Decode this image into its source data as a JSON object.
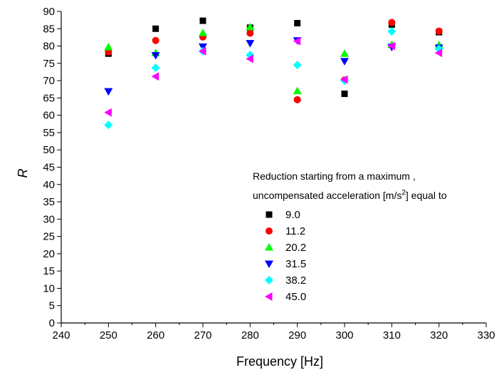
{
  "chart_data": {
    "type": "scatter",
    "xlabel": "Frequency [Hz]",
    "ylabel": "R",
    "xlim": [
      240,
      330
    ],
    "ylim": [
      0,
      90
    ],
    "x_ticks": [
      240,
      250,
      260,
      270,
      280,
      290,
      300,
      310,
      320,
      330
    ],
    "y_ticks": [
      0,
      5,
      10,
      15,
      20,
      25,
      30,
      35,
      40,
      45,
      50,
      55,
      60,
      65,
      70,
      75,
      80,
      85,
      90
    ],
    "grid": false,
    "legend": {
      "placement": "right-center",
      "title_line1": "Reduction starting from a maximum ,",
      "title_line2_prefix": "uncompensated acceleration [m/s",
      "title_line2_sup": "2",
      "title_line2_suffix": "] equal to"
    },
    "series": [
      {
        "name": "9.0",
        "marker": "square",
        "color": "#000000",
        "x": [
          250,
          260,
          270,
          280,
          290,
          300,
          310,
          320
        ],
        "y": [
          77.8,
          85.0,
          87.3,
          85.3,
          86.6,
          66.2,
          86.2,
          84.0
        ]
      },
      {
        "name": "11.2",
        "marker": "circle",
        "color": "#ff0000",
        "x": [
          250,
          260,
          270,
          280,
          290,
          300,
          310,
          320
        ],
        "y": [
          78.3,
          81.6,
          82.6,
          83.7,
          64.5,
          70.2,
          86.8,
          84.3
        ]
      },
      {
        "name": "20.2",
        "marker": "triangle-up",
        "color": "#00ff00",
        "x": [
          250,
          260,
          270,
          280,
          290,
          300,
          310,
          320
        ],
        "y": [
          79.7,
          78.0,
          83.8,
          85.5,
          67.0,
          77.8,
          80.4,
          80.3
        ]
      },
      {
        "name": "31.5",
        "marker": "triangle-down",
        "color": "#0000ff",
        "x": [
          250,
          260,
          270,
          280,
          290,
          300,
          310,
          320
        ],
        "y": [
          66.9,
          77.3,
          79.8,
          80.8,
          81.6,
          75.6,
          79.7,
          79.5
        ]
      },
      {
        "name": "38.2",
        "marker": "diamond",
        "color": "#00ffff",
        "x": [
          250,
          260,
          270,
          280,
          290,
          300,
          310,
          320
        ],
        "y": [
          57.2,
          73.7,
          78.5,
          77.4,
          74.5,
          70.0,
          84.2,
          79.2
        ]
      },
      {
        "name": "45.0",
        "marker": "triangle-left",
        "color": "#ff00ff",
        "x": [
          250,
          260,
          270,
          280,
          290,
          300,
          310,
          320
        ],
        "y": [
          60.8,
          71.2,
          78.5,
          76.3,
          81.4,
          70.3,
          80.0,
          78.0
        ]
      }
    ]
  }
}
